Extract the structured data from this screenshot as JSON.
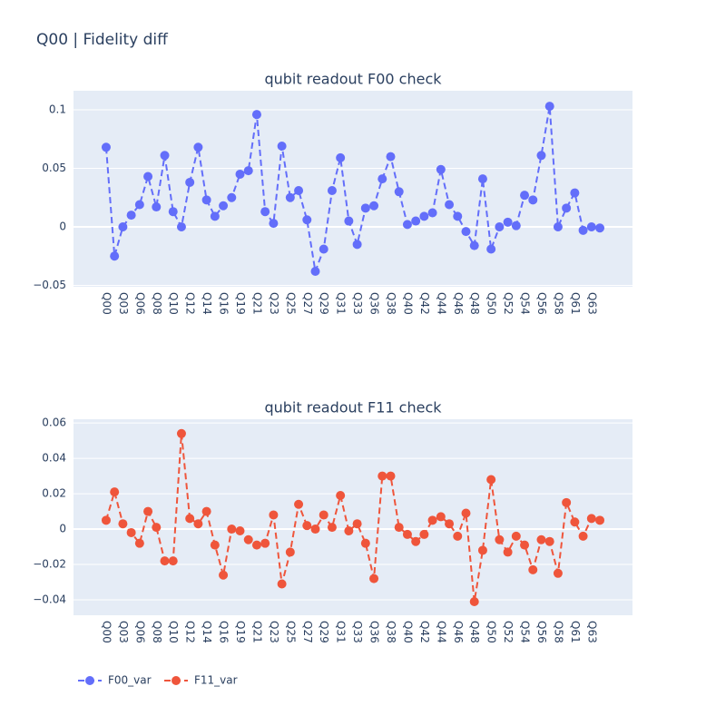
{
  "title": "Q00 | Fidelity diff",
  "legend": "bottom-left",
  "chart_data": [
    {
      "type": "line",
      "title": "qubit readout F00 check",
      "categories": [
        "Q00",
        null,
        "Q03",
        null,
        "Q06",
        null,
        "Q08",
        null,
        "Q10",
        null,
        "Q12",
        null,
        "Q14",
        null,
        "Q16",
        null,
        "Q19",
        null,
        "Q21",
        null,
        "Q23",
        null,
        "Q25",
        null,
        "Q27",
        null,
        "Q29",
        null,
        "Q31",
        null,
        "Q33",
        null,
        "Q36",
        null,
        "Q38",
        null,
        "Q40",
        null,
        "Q42",
        null,
        "Q44",
        null,
        "Q46",
        null,
        "Q48",
        null,
        "Q50",
        null,
        "Q52",
        null,
        "Q54",
        null,
        "Q56",
        null,
        "Q58",
        null,
        "Q61",
        null,
        "Q63",
        null
      ],
      "series": [
        {
          "name": "F00_var",
          "color": "#636efa",
          "values": [
            0.068,
            -0.025,
            0.0,
            0.01,
            0.019,
            0.043,
            0.017,
            0.061,
            0.013,
            0.0,
            0.038,
            0.068,
            0.023,
            0.009,
            0.018,
            0.025,
            0.045,
            0.048,
            0.096,
            0.013,
            0.003,
            0.069,
            0.025,
            0.031,
            0.006,
            -0.038,
            -0.019,
            0.031,
            0.059,
            0.005,
            -0.015,
            0.016,
            0.018,
            0.041,
            0.06,
            0.03,
            0.002,
            0.005,
            0.009,
            0.012,
            0.049,
            0.019,
            0.009,
            -0.004,
            -0.016,
            0.041,
            -0.019,
            0.0,
            0.004,
            0.001,
            0.027,
            0.023,
            0.061,
            0.103,
            0.0,
            0.016,
            0.029,
            -0.003,
            0.0,
            -0.001
          ]
        }
      ],
      "ylim": [
        -0.0512,
        0.1163
      ],
      "yticks": [
        {
          "value": -0.05,
          "label": "−0.05"
        },
        0,
        0.05,
        0.1
      ],
      "grid": true
    },
    {
      "type": "line",
      "title": "qubit readout F11 check",
      "categories": [
        "Q00",
        null,
        "Q03",
        null,
        "Q06",
        null,
        "Q08",
        null,
        "Q10",
        null,
        "Q12",
        null,
        "Q14",
        null,
        "Q16",
        null,
        "Q19",
        null,
        "Q21",
        null,
        "Q23",
        null,
        "Q25",
        null,
        "Q27",
        null,
        "Q29",
        null,
        "Q31",
        null,
        "Q33",
        null,
        "Q36",
        null,
        "Q38",
        null,
        "Q40",
        null,
        "Q42",
        null,
        "Q44",
        null,
        "Q46",
        null,
        "Q48",
        null,
        "Q50",
        null,
        "Q52",
        null,
        "Q54",
        null,
        "Q56",
        null,
        "Q58",
        null,
        "Q61",
        null,
        "Q63",
        null
      ],
      "series": [
        {
          "name": "F11_var",
          "color": "#EF553B",
          "values": [
            0.005,
            0.021,
            0.003,
            -0.002,
            -0.008,
            0.01,
            0.001,
            -0.018,
            -0.018,
            0.054,
            0.006,
            0.003,
            0.01,
            -0.009,
            -0.026,
            0.0,
            -0.001,
            -0.006,
            -0.009,
            -0.008,
            0.008,
            -0.031,
            -0.013,
            0.014,
            0.002,
            0.0,
            0.008,
            0.001,
            0.019,
            -0.001,
            0.003,
            -0.008,
            -0.028,
            0.03,
            0.03,
            0.001,
            -0.003,
            -0.007,
            -0.003,
            0.005,
            0.007,
            0.003,
            -0.004,
            0.009,
            -0.041,
            -0.012,
            0.028,
            -0.006,
            -0.013,
            -0.004,
            -0.009,
            -0.023,
            -0.006,
            -0.007,
            -0.025,
            0.015,
            0.004,
            -0.004,
            0.006,
            0.005
          ]
        }
      ],
      "ylim": [
        -0.0487,
        0.0621
      ],
      "yticks": [
        {
          "value": -0.04,
          "label": "−0.04"
        },
        {
          "value": -0.02,
          "label": "−0.02"
        },
        0,
        0.02,
        0.04,
        0.06
      ],
      "grid": true
    }
  ]
}
